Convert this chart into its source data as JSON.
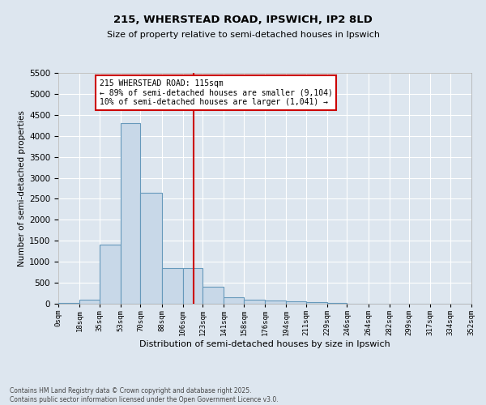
{
  "title1": "215, WHERSTEAD ROAD, IPSWICH, IP2 8LD",
  "title2": "Size of property relative to semi-detached houses in Ipswich",
  "xlabel": "Distribution of semi-detached houses by size in Ipswich",
  "ylabel": "Number of semi-detached properties",
  "bar_values": [
    10,
    100,
    1400,
    4300,
    2650,
    850,
    850,
    400,
    150,
    100,
    75,
    50,
    30,
    10,
    5,
    3,
    2,
    1,
    1,
    0
  ],
  "bin_edges": [
    0,
    18,
    35,
    53,
    70,
    88,
    106,
    123,
    141,
    158,
    176,
    194,
    211,
    229,
    246,
    264,
    282,
    299,
    317,
    334,
    352
  ],
  "bar_color": "#c8d8e8",
  "bar_edge_color": "#6699bb",
  "vline_x": 115,
  "vline_color": "#cc0000",
  "ylim": [
    0,
    5500
  ],
  "yticks": [
    0,
    500,
    1000,
    1500,
    2000,
    2500,
    3000,
    3500,
    4000,
    4500,
    5000,
    5500
  ],
  "annotation_text": "215 WHERSTEAD ROAD: 115sqm\n← 89% of semi-detached houses are smaller (9,104)\n10% of semi-detached houses are larger (1,041) →",
  "annotation_box_color": "#ffffff",
  "annotation_box_edge": "#cc0000",
  "footer1": "Contains HM Land Registry data © Crown copyright and database right 2025.",
  "footer2": "Contains public sector information licensed under the Open Government Licence v3.0.",
  "background_color": "#dde6ef",
  "plot_background": "#dde6ef",
  "grid_color": "#ffffff"
}
